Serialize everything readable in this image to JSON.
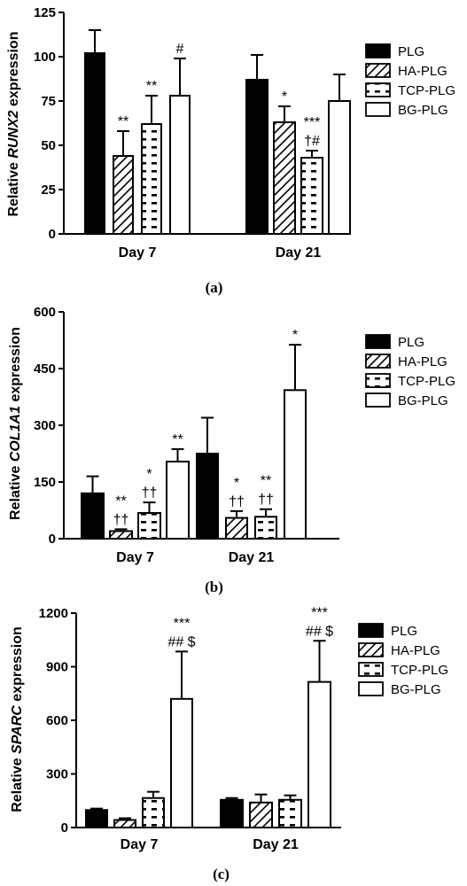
{
  "chart_data": [
    {
      "type": "bar",
      "panel_label": "(a)",
      "ylabel_prefix": "Relative ",
      "ylabel_gene": "RUNX2",
      "ylabel_suffix": " expression",
      "xlabel": "",
      "ylim": [
        0,
        125
      ],
      "yticks": [
        0,
        25,
        50,
        75,
        100,
        125
      ],
      "categories": [
        "Day 7",
        "Day 21"
      ],
      "series": [
        {
          "name": "PLG",
          "pattern": "solid",
          "values": [
            102,
            87
          ],
          "errors": [
            13,
            14
          ],
          "annotations": [
            "",
            ""
          ]
        },
        {
          "name": "HA-PLG",
          "pattern": "diagonal",
          "values": [
            44,
            63
          ],
          "errors": [
            14,
            9
          ],
          "annotations": [
            "**",
            "*"
          ]
        },
        {
          "name": "TCP-PLG",
          "pattern": "dash",
          "values": [
            62,
            43
          ],
          "errors": [
            16,
            4
          ],
          "annotations": [
            "**",
            "***|†#"
          ]
        },
        {
          "name": "BG-PLG",
          "pattern": "open",
          "values": [
            78,
            75
          ],
          "errors": [
            21,
            15
          ],
          "annotations": [
            "#",
            ""
          ]
        }
      ],
      "legend_position": "right"
    },
    {
      "type": "bar",
      "panel_label": "(b)",
      "ylabel_prefix": "Relative ",
      "ylabel_gene": "COL1A1",
      "ylabel_suffix": " expression",
      "xlabel": "",
      "ylim": [
        0,
        600
      ],
      "yticks": [
        0,
        150,
        300,
        450,
        600
      ],
      "categories": [
        "Day 7",
        "Day 21"
      ],
      "series": [
        {
          "name": "PLG",
          "pattern": "solid",
          "values": [
            120,
            225
          ],
          "errors": [
            45,
            95
          ],
          "annotations": [
            "",
            ""
          ]
        },
        {
          "name": "HA-PLG",
          "pattern": "diagonal",
          "values": [
            20,
            55
          ],
          "errors": [
            5,
            18
          ],
          "annotations": [
            "**|††",
            "*|††"
          ]
        },
        {
          "name": "TCP-PLG",
          "pattern": "dash",
          "values": [
            68,
            58
          ],
          "errors": [
            28,
            20
          ],
          "annotations": [
            "*|††",
            "**|††"
          ]
        },
        {
          "name": "BG-PLG",
          "pattern": "open",
          "values": [
            204,
            393
          ],
          "errors": [
            33,
            120
          ],
          "annotations": [
            "**",
            "*"
          ]
        }
      ],
      "legend_position": "right"
    },
    {
      "type": "bar",
      "panel_label": "(c)",
      "ylabel_prefix": "Relative ",
      "ylabel_gene": "SPARC",
      "ylabel_suffix": " expression",
      "xlabel": "",
      "ylim": [
        0,
        1200
      ],
      "yticks": [
        0,
        300,
        600,
        900,
        1200
      ],
      "categories": [
        "Day 7",
        "Day 21"
      ],
      "series": [
        {
          "name": "PLG",
          "pattern": "solid",
          "values": [
            98,
            155
          ],
          "errors": [
            8,
            10
          ],
          "annotations": [
            "",
            ""
          ]
        },
        {
          "name": "HA-PLG",
          "pattern": "diagonal",
          "values": [
            42,
            140
          ],
          "errors": [
            10,
            45
          ],
          "annotations": [
            "",
            ""
          ]
        },
        {
          "name": "TCP-PLG",
          "pattern": "dash",
          "values": [
            165,
            155
          ],
          "errors": [
            35,
            25
          ],
          "annotations": [
            "",
            ""
          ]
        },
        {
          "name": "BG-PLG",
          "pattern": "open",
          "values": [
            720,
            815
          ],
          "errors": [
            265,
            230
          ],
          "annotations": [
            "***|## $",
            "***|## $"
          ]
        }
      ],
      "legend_position": "right"
    }
  ]
}
